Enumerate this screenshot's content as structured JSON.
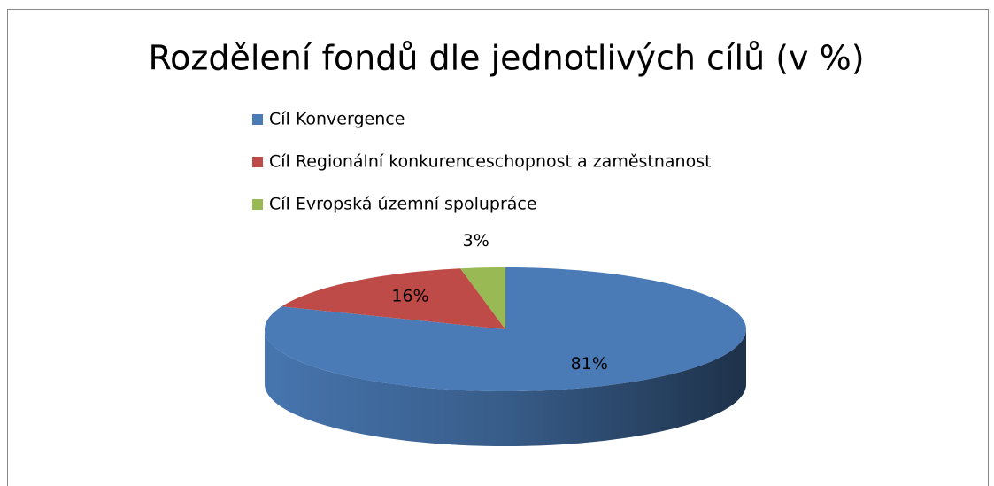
{
  "chart_data": {
    "type": "pie",
    "title": "Rozdělení fondů dle jednotlivých cílů (v %)",
    "categories": [
      "Cíl Konvergence",
      "Cíl Regionální konkurenceschopnost a zaměstnanost",
      "Cíl Evropská územní spolupráce"
    ],
    "values": [
      81,
      16,
      3
    ],
    "value_labels": [
      "81%",
      "16%",
      "3%"
    ],
    "colors": [
      "#4a7bb7",
      "#be4b48",
      "#98b954"
    ],
    "legend": "top"
  }
}
